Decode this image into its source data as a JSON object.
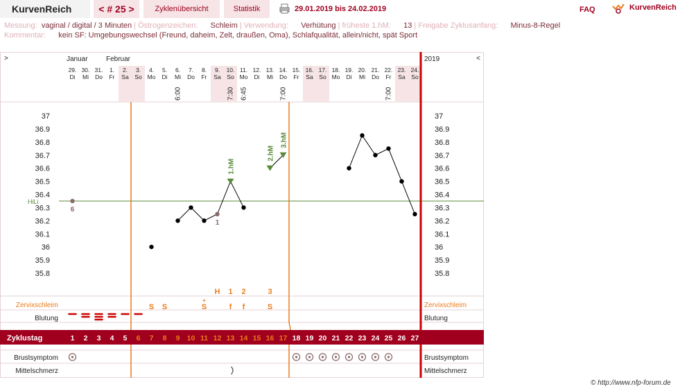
{
  "header": {
    "app_name": "KurvenReich",
    "cycle_nav": "< # 25 >",
    "tab_overview": "Zyklenübersicht",
    "tab_stats": "Statistik",
    "date_range": "29.01.2019 bis 24.02.2019",
    "faq": "FAQ",
    "brand": "KurvenReich"
  },
  "info": {
    "messung_label": "Messung:",
    "messung_value": "vaginal / digital / 3 Minuten",
    "oestrogen_label": "Östrogenzeichen:",
    "oestrogen_value": "Schleim",
    "verwendung_label": "Verwendung:",
    "verwendung_value": "Verhütung",
    "fruehste_label": "früheste 1.hM:",
    "fruehste_value": "13",
    "freigabe_label": "Freigabe Zyklusanfang:",
    "freigabe_value": "Minus-8-Regel",
    "kommentar_label": "Kommentar:",
    "kommentar_value": "kein SF: Umgebungswechsel (Freund, daheim, Zelt, draußen, Oma), Schlafqualität, allein/nicht, spät Sport"
  },
  "chart_data": {
    "type": "line",
    "nav_left": ">",
    "nav_right": "<",
    "year": "2019",
    "months": [
      {
        "label": "Januar",
        "day_index": 0
      },
      {
        "label": "Februar",
        "day_index": 3
      }
    ],
    "days": [
      {
        "date": "29.",
        "wd": "Di",
        "weekend": false,
        "time": ""
      },
      {
        "date": "30.",
        "wd": "Mi",
        "weekend": false,
        "time": ""
      },
      {
        "date": "31.",
        "wd": "Do",
        "weekend": false,
        "time": ""
      },
      {
        "date": "1.",
        "wd": "Fr",
        "weekend": false,
        "time": ""
      },
      {
        "date": "2.",
        "wd": "Sa",
        "weekend": true,
        "time": ""
      },
      {
        "date": "3.",
        "wd": "So",
        "weekend": true,
        "time": ""
      },
      {
        "date": "4.",
        "wd": "Mo",
        "weekend": false,
        "time": ""
      },
      {
        "date": "5.",
        "wd": "Di",
        "weekend": false,
        "time": ""
      },
      {
        "date": "6.",
        "wd": "Mi",
        "weekend": false,
        "time": "6:00"
      },
      {
        "date": "7.",
        "wd": "Do",
        "weekend": false,
        "time": ""
      },
      {
        "date": "8.",
        "wd": "Fr",
        "weekend": false,
        "time": ""
      },
      {
        "date": "9.",
        "wd": "Sa",
        "weekend": true,
        "time": ""
      },
      {
        "date": "10.",
        "wd": "So",
        "weekend": true,
        "time": "7:30"
      },
      {
        "date": "11.",
        "wd": "Mo",
        "weekend": false,
        "time": "6:45"
      },
      {
        "date": "12.",
        "wd": "Di",
        "weekend": false,
        "time": ""
      },
      {
        "date": "13.",
        "wd": "Mi",
        "weekend": false,
        "time": ""
      },
      {
        "date": "14.",
        "wd": "Do",
        "weekend": false,
        "time": "7:00"
      },
      {
        "date": "15.",
        "wd": "Fr",
        "weekend": false,
        "time": ""
      },
      {
        "date": "16.",
        "wd": "Sa",
        "weekend": true,
        "time": ""
      },
      {
        "date": "17.",
        "wd": "So",
        "weekend": true,
        "time": ""
      },
      {
        "date": "18.",
        "wd": "Mo",
        "weekend": false,
        "time": ""
      },
      {
        "date": "19.",
        "wd": "Di",
        "weekend": false,
        "time": ""
      },
      {
        "date": "20.",
        "wd": "Mi",
        "weekend": false,
        "time": ""
      },
      {
        "date": "21.",
        "wd": "Do",
        "weekend": false,
        "time": ""
      },
      {
        "date": "22.",
        "wd": "Fr",
        "weekend": false,
        "time": "7:00"
      },
      {
        "date": "23.",
        "wd": "Sa",
        "weekend": true,
        "time": ""
      },
      {
        "date": "24.",
        "wd": "So",
        "weekend": true,
        "time": ""
      }
    ],
    "y_ticks": [
      "37",
      "36.9",
      "36.8",
      "36.7",
      "36.6",
      "36.5",
      "36.4",
      "36.3",
      "36.2",
      "36.1",
      "36",
      "35.9",
      "35.8"
    ],
    "ylim": [
      35.8,
      37.0
    ],
    "hilo_label": "HiLi",
    "hilo_value": 36.35,
    "temps": [
      {
        "day": 1,
        "t": 36.35,
        "excluded": true,
        "note": "6"
      },
      {
        "day": 7,
        "t": 36.0,
        "excluded": false
      },
      {
        "day": 9,
        "t": 36.2,
        "excluded": false
      },
      {
        "day": 10,
        "t": 36.3,
        "excluded": false
      },
      {
        "day": 11,
        "t": 36.2,
        "excluded": false
      },
      {
        "day": 12,
        "t": 36.25,
        "excluded": true,
        "note": "1"
      },
      {
        "day": 13,
        "t": 36.5,
        "excluded": false,
        "marker": "1.hM"
      },
      {
        "day": 14,
        "t": 36.3,
        "excluded": false
      },
      {
        "day": 16,
        "t": 36.6,
        "excluded": false,
        "marker": "2.hM"
      },
      {
        "day": 17,
        "t": 36.7,
        "excluded": false,
        "marker": "3.hM"
      },
      {
        "day": 22,
        "t": 36.6,
        "excluded": false
      },
      {
        "day": 23,
        "t": 36.85,
        "excluded": false
      },
      {
        "day": 24,
        "t": 36.7,
        "excluded": false
      },
      {
        "day": 25,
        "t": 36.75,
        "excluded": false
      },
      {
        "day": 26,
        "t": 36.5,
        "excluded": false
      },
      {
        "day": 27,
        "t": 36.25,
        "excluded": false
      }
    ],
    "peak_labels": [
      {
        "day": 12,
        "text": "H"
      },
      {
        "day": 13,
        "text": "1"
      },
      {
        "day": 14,
        "text": "2"
      },
      {
        "day": 16,
        "text": "3"
      }
    ],
    "zervix_label": "Zervixschleim",
    "zervix": [
      {
        "day": 7,
        "text": "S"
      },
      {
        "day": 8,
        "text": "S"
      },
      {
        "day": 11,
        "text": "S",
        "plus": true
      },
      {
        "day": 13,
        "text": "f"
      },
      {
        "day": 14,
        "text": "f"
      },
      {
        "day": 16,
        "text": "S"
      }
    ],
    "blutung_label": "Blutung",
    "blutung": [
      {
        "day": 1,
        "level": 1
      },
      {
        "day": 2,
        "level": 2
      },
      {
        "day": 3,
        "level": 3
      },
      {
        "day": 4,
        "level": 2
      },
      {
        "day": 5,
        "level": 1
      },
      {
        "day": 6,
        "level": 1
      }
    ],
    "zyklustag_label": "Zyklustag",
    "cycle_days": [
      "1",
      "2",
      "3",
      "4",
      "5",
      "6",
      "7",
      "8",
      "9",
      "10",
      "11",
      "12",
      "13",
      "14",
      "15",
      "16",
      "17",
      "18",
      "19",
      "20",
      "21",
      "22",
      "23",
      "24",
      "25",
      "26",
      "27"
    ],
    "fertile_from": 6,
    "fertile_to": 17,
    "brust_label": "Brustsymptom",
    "brust_days": [
      1,
      18,
      19,
      20,
      21,
      22,
      23,
      24,
      25
    ],
    "mittel_label": "Mittelschmerz",
    "mittel_days": [
      13
    ],
    "colors": {
      "dark_red": "#a0001e",
      "orange": "#ec7b1a",
      "green": "#5a8a3a",
      "weekend": "#f6e4e6"
    }
  },
  "footer": {
    "credit": "© http://www.nfp-forum.de"
  }
}
